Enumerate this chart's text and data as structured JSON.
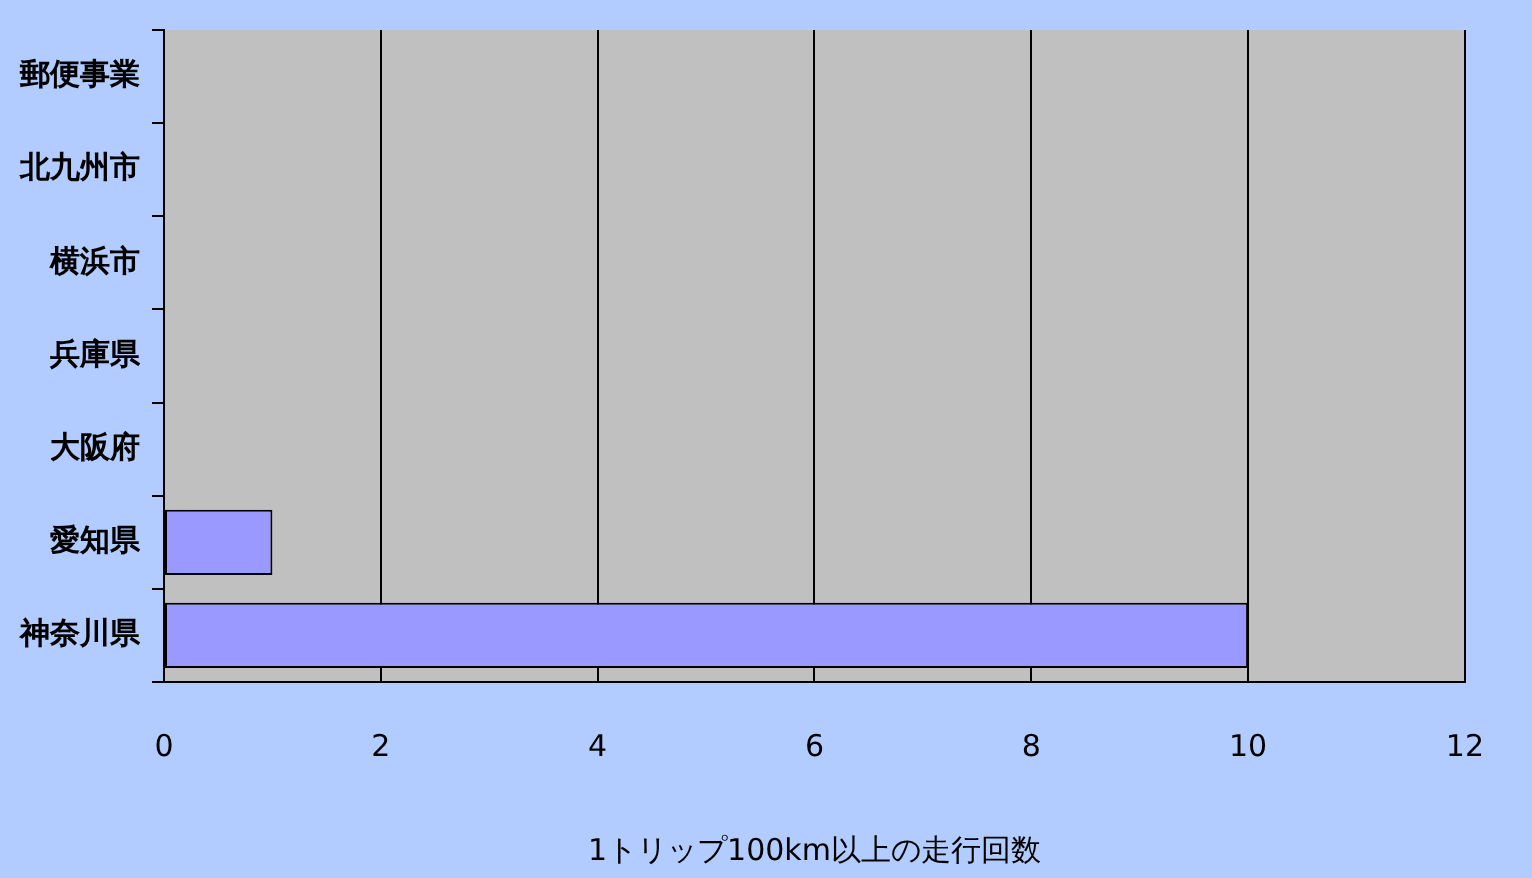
{
  "chart_data": {
    "type": "bar",
    "orientation": "horizontal",
    "xlabel": "1トリップ100km以上の走行回数",
    "categories": [
      "郵便事業",
      "北九州市",
      "横浜市",
      "兵庫県",
      "大阪府",
      "愛知県",
      "神奈川県"
    ],
    "values": [
      0,
      0,
      0,
      0,
      0,
      1,
      10
    ],
    "color": "#9999ff",
    "xlim": [
      0,
      12
    ],
    "xticks": [
      0,
      2,
      4,
      6,
      8,
      10,
      12
    ],
    "grid": "x",
    "legend": false
  }
}
